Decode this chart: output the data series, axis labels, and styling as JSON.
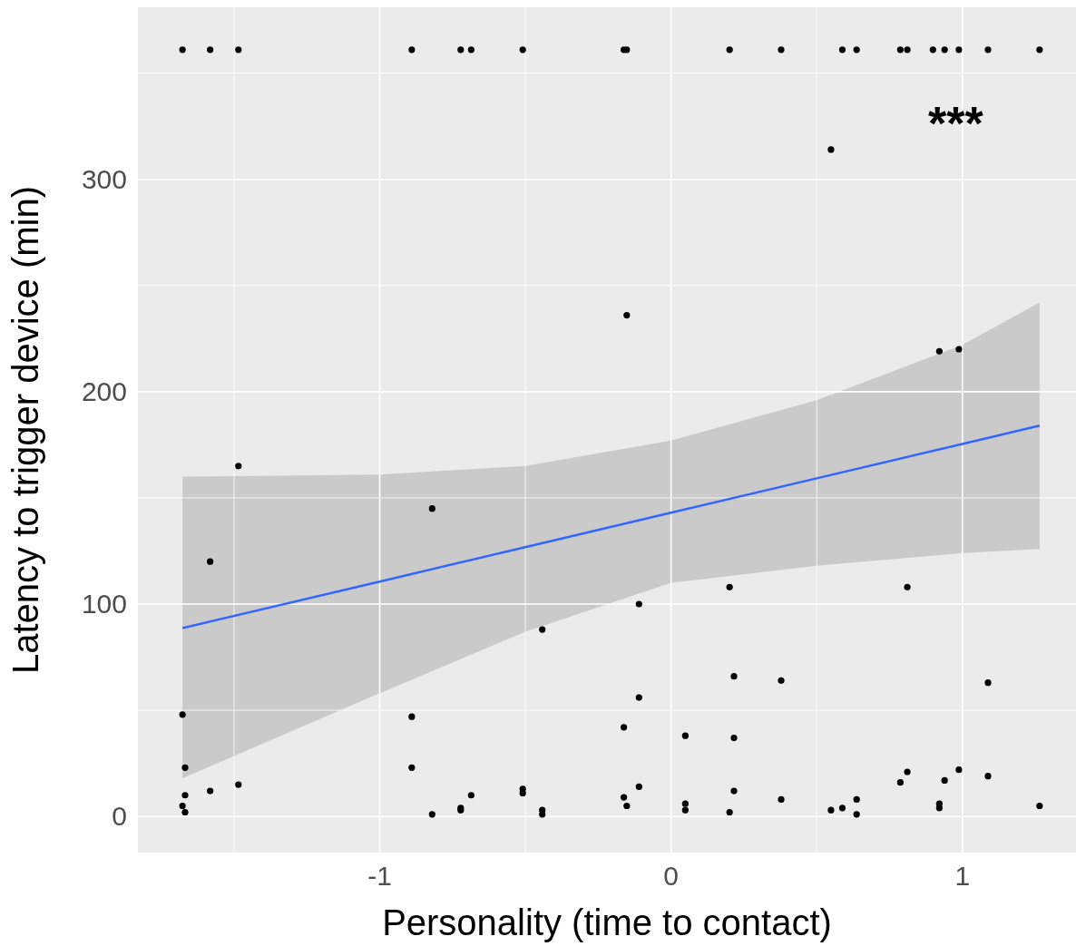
{
  "chart_data": {
    "type": "scatter",
    "xlabel": "Personality (time to contact)",
    "ylabel": "Latency to trigger device (min)",
    "xlim": [
      -1.83,
      1.39
    ],
    "ylim": [
      -17,
      381
    ],
    "xticks": [
      {
        "value": -1.5,
        "label": null
      },
      -1,
      {
        "value": -0.5,
        "label": null
      },
      0,
      {
        "value": 0.5,
        "label": null
      },
      1
    ],
    "yticks": [
      0,
      {
        "value": 50,
        "label": null
      },
      100,
      {
        "value": 150,
        "label": null
      },
      200,
      {
        "value": 250,
        "label": null
      },
      300,
      {
        "value": 350,
        "label": null
      }
    ],
    "grid": true,
    "legend": false,
    "marker": "circle",
    "annotations": [
      "***"
    ],
    "series": [
      {
        "color": "#000000",
        "x": [
          -1.677,
          -1.582,
          -1.485,
          -0.89,
          -0.722,
          -0.686,
          -0.509,
          -0.162,
          -0.152,
          0.201,
          0.378,
          0.588,
          0.637,
          0.787,
          0.811,
          0.899,
          0.939,
          0.988,
          1.088,
          1.265,
          0.549,
          -0.152,
          0.921,
          0.988,
          -1.485,
          -0.82,
          -1.582,
          0.201,
          0.811,
          -0.11,
          -0.442,
          1.088,
          0.216,
          0.378,
          -0.11,
          -1.677,
          -0.89,
          -0.162,
          0.049,
          0.216,
          -1.668,
          -0.89,
          0.988,
          0.811,
          1.088,
          0.787,
          0.939,
          -1.485,
          -0.11,
          -1.582,
          -0.509,
          0.216,
          -1.668,
          -0.686,
          -0.509,
          -0.162,
          0.378,
          0.637,
          0.049,
          -1.677,
          0.921,
          0.921,
          1.265,
          -0.722,
          -0.722,
          -0.442,
          -0.442,
          -0.152,
          0.049,
          0.549,
          0.588,
          -1.668,
          0.201,
          -0.82,
          0.637
        ],
        "values": [
          361,
          361,
          361,
          361,
          361,
          361,
          361,
          361,
          361,
          361,
          361,
          361,
          361,
          361,
          361,
          361,
          361,
          361,
          361,
          361,
          314,
          236,
          219,
          220,
          165,
          145,
          120,
          108,
          108,
          100,
          88,
          63,
          66,
          64,
          56,
          48,
          47,
          42,
          38,
          37,
          23,
          23,
          22,
          21,
          19,
          16,
          17,
          15,
          14,
          12,
          13,
          12,
          10,
          10,
          11,
          9,
          8,
          8,
          6,
          5,
          6,
          4,
          5,
          4,
          3,
          3,
          1,
          5,
          3,
          3,
          4,
          2,
          2,
          1,
          1
        ]
      },
      {
        "type": "line",
        "color": "#3366ff",
        "marker": "none",
        "x": [
          -1.677,
          -1,
          -0.5,
          0,
          0.5,
          1,
          1.265
        ],
        "values": [
          88.7,
          110.6,
          126.8,
          143,
          159.2,
          175.4,
          184
        ],
        "lower": [
          18,
          58,
          87,
          110,
          118,
          124,
          126
        ],
        "upper": [
          160,
          161,
          165,
          177,
          196,
          222,
          242
        ]
      }
    ]
  }
}
